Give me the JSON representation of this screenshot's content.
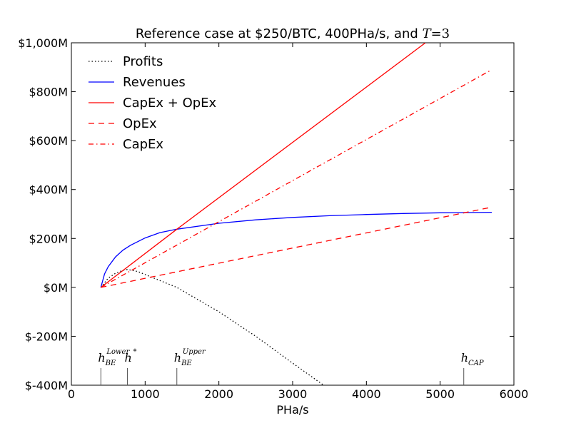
{
  "chart_data": {
    "type": "line",
    "title": "Reference case at $250/BTC, 400PHa/s, and T=3",
    "title_prefix": "Reference case at $250/BTC, 400PHa/s, and ",
    "title_var": "T",
    "title_eq": "=3",
    "xlabel": "PHa/s",
    "ylabel": "",
    "xlim": [
      0,
      6000
    ],
    "ylim": [
      -400,
      1000
    ],
    "x_ticks": [
      0,
      1000,
      2000,
      3000,
      4000,
      5000,
      6000
    ],
    "x_tick_labels": [
      "0",
      "1000",
      "2000",
      "3000",
      "4000",
      "5000",
      "6000"
    ],
    "y_ticks": [
      -400,
      -200,
      0,
      200,
      400,
      600,
      800,
      1000
    ],
    "y_tick_labels": [
      "$-400M",
      "$-200M",
      "$0M",
      "$200M",
      "$400M",
      "$600M",
      "$800M",
      "$1,000M"
    ],
    "legend_position": "top-left",
    "grid": false,
    "series": [
      {
        "name": "Profits",
        "color": "#000000",
        "style": "dotted",
        "x": [
          400,
          500,
          600,
          700,
          760,
          900,
          1100,
          1430,
          2000,
          2500,
          3000,
          3420
        ],
        "y": [
          0,
          38,
          58,
          70,
          73,
          65,
          40,
          0,
          -100,
          -200,
          -310,
          -400
        ]
      },
      {
        "name": "Revenues",
        "color": "#0000ff",
        "style": "solid",
        "x": [
          400,
          450,
          500,
          600,
          700,
          800,
          1000,
          1200,
          1430,
          2000,
          2500,
          3000,
          3500,
          4000,
          4500,
          5000,
          5700
        ],
        "y": [
          0,
          55,
          85,
          125,
          152,
          172,
          202,
          224,
          238,
          262,
          276,
          286,
          293,
          298,
          302,
          305,
          307
        ]
      },
      {
        "name": "CapEx + OpEx",
        "color": "#ff0000",
        "style": "solid",
        "x": [
          400,
          1430,
          4800
        ],
        "y": [
          0,
          238,
          1000
        ]
      },
      {
        "name": "OpEx",
        "color": "#ff0000",
        "style": "dashed",
        "x": [
          400,
          5700
        ],
        "y": [
          0,
          328
        ]
      },
      {
        "name": "CapEx",
        "color": "#ff0000",
        "style": "dashdot",
        "x": [
          400,
          5700
        ],
        "y": [
          0,
          890
        ]
      }
    ],
    "markers": [
      {
        "x": 400,
        "label": "h",
        "sub": "BE",
        "sup": "Lower"
      },
      {
        "x": 760,
        "label": "h",
        "sub": "",
        "sup": "*"
      },
      {
        "x": 1430,
        "label": "h",
        "sub": "BE",
        "sup": "Upper"
      },
      {
        "x": 5320,
        "label": "h",
        "sub": "CAP",
        "sup": ""
      }
    ]
  }
}
